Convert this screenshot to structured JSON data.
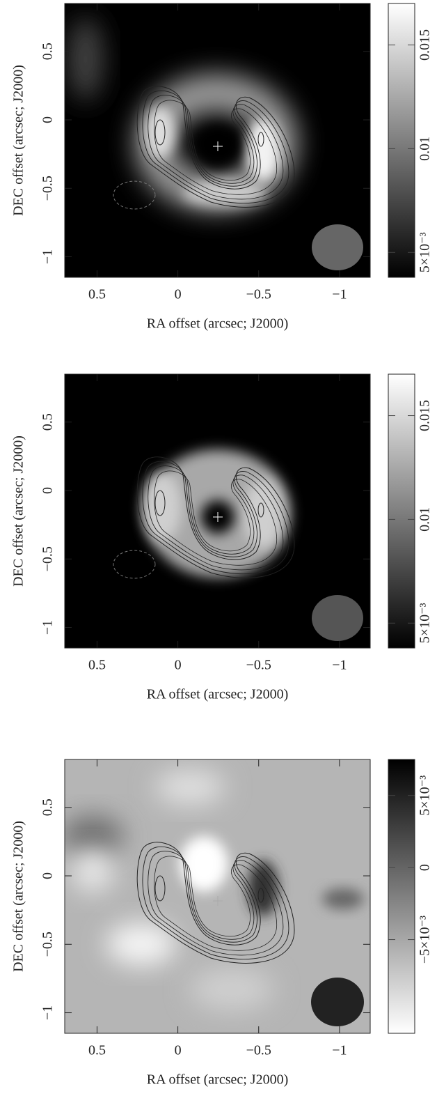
{
  "chart_data": [
    {
      "type": "image",
      "xlabel": "RA offset (arcsec; J2000)",
      "ylabel": "DEC offset (arcsec; J2000)",
      "xlim": [
        0.7,
        -1.19
      ],
      "ylim": [
        -1.15,
        0.85
      ],
      "xticks": [
        0.5,
        0,
        {
          "value": -0.5,
          "label": "−0.5"
        },
        {
          "value": -1,
          "label": "−1"
        }
      ],
      "yticks": [
        {
          "value": -1,
          "label": "−1"
        },
        {
          "value": -0.5,
          "label": "−0.5"
        },
        0,
        0.5
      ],
      "colormap": "gray",
      "clim": [
        0.0038,
        0.017
      ],
      "cticks": [
        {
          "value": 0.005,
          "label": "5×10⁻³"
        },
        0.01,
        0.015
      ]
    },
    {
      "type": "image",
      "xlabel": "RA offset (arcsec; J2000)",
      "ylabel": "DEC offset (arcsec; J2000)",
      "xlim": [
        0.7,
        -1.19
      ],
      "ylim": [
        -1.15,
        0.85
      ],
      "xticks": [
        0.5,
        0,
        {
          "value": -0.5,
          "label": "−0.5"
        },
        {
          "value": -1,
          "label": "−1"
        }
      ],
      "yticks": [
        {
          "value": -1,
          "label": "−1"
        },
        {
          "value": -0.5,
          "label": "−0.5"
        },
        0,
        0.5
      ],
      "colormap": "gray",
      "clim": [
        0.0038,
        0.017
      ],
      "cticks": [
        {
          "value": 0.005,
          "label": "5×10⁻³"
        },
        0.01,
        0.015
      ]
    },
    {
      "type": "image",
      "xlabel": "RA offset (arcsec; J2000)",
      "ylabel": "DEC offset (arcsec; J2000)",
      "xlim": [
        0.7,
        -1.19
      ],
      "ylim": [
        -1.15,
        0.85
      ],
      "xticks": [
        0.5,
        0,
        {
          "value": -0.5,
          "label": "−0.5"
        },
        {
          "value": -1,
          "label": "−1"
        }
      ],
      "yticks": [
        {
          "value": -1,
          "label": "−1"
        },
        {
          "value": -0.5,
          "label": "−0.5"
        },
        0,
        0.5
      ],
      "colormap": "gray_r",
      "clim": [
        -0.0115,
        0.0075
      ],
      "cticks": [
        {
          "value": -0.005,
          "label": "−5×10⁻³"
        },
        0,
        {
          "value": 0.005,
          "label": "5×10⁻³"
        }
      ]
    }
  ]
}
